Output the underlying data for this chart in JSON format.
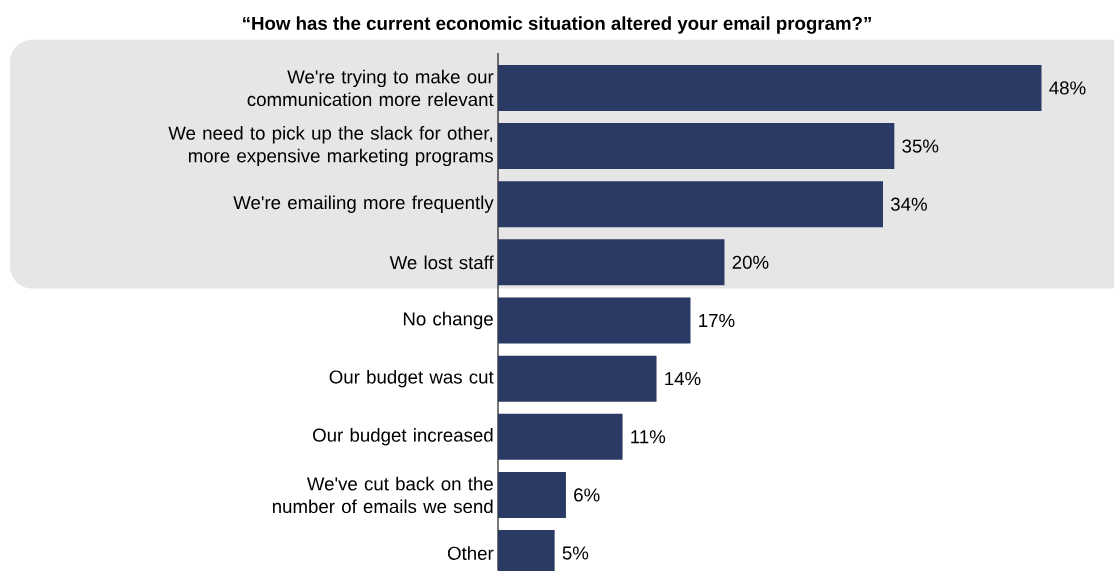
{
  "chart_data": {
    "type": "bar",
    "orientation": "horizontal",
    "title": "“How has the current economic situation altered your email program?”",
    "categories": [
      "We're trying to make our communication more relevant",
      "We need to pick up the slack for other, more expensive marketing programs",
      "We're emailing more frequently",
      "We lost staff",
      "No change",
      "Our budget was cut",
      "Our budget increased",
      "We've cut back on the number of emails we send",
      "Other"
    ],
    "values": [
      48,
      35,
      34,
      20,
      17,
      14,
      11,
      6,
      5
    ],
    "value_labels": [
      "48%",
      "35%",
      "34%",
      "20%",
      "17%",
      "14%",
      "11%",
      "6%",
      "5%"
    ],
    "color": "#2b3a64",
    "bands": [
      {
        "axis": "y",
        "from": "We're trying to make our communication more relevant",
        "to": "We lost staff",
        "color": "#e6e6e6"
      }
    ]
  }
}
